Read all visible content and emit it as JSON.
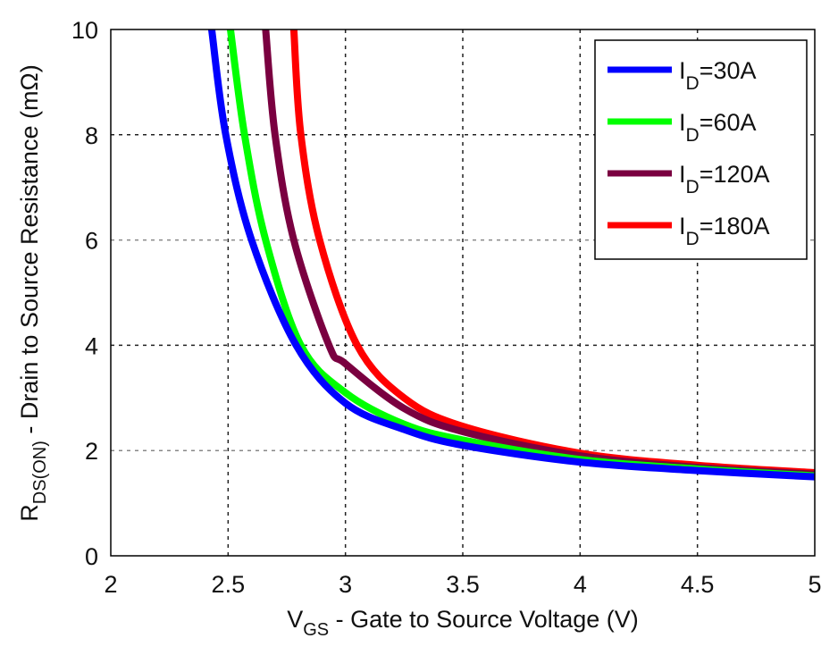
{
  "chart_data": {
    "type": "line",
    "title": "",
    "xlabel": {
      "main": "V",
      "sub": "GS",
      "rest": " - Gate to Source Voltage (V)"
    },
    "ylabel": {
      "main": "R",
      "sub": "DS(ON)",
      "rest": " - Drain to Source Resistance (mΩ)"
    },
    "xlim": [
      2,
      5
    ],
    "ylim": [
      0,
      10
    ],
    "xticks": [
      2,
      2.5,
      3,
      3.5,
      4,
      4.5,
      5
    ],
    "xtick_labels": [
      "2",
      "2.5",
      "3",
      "3.5",
      "4",
      "4.5",
      "5"
    ],
    "yticks": [
      0,
      2,
      4,
      6,
      8,
      10
    ],
    "ytick_labels": [
      "0",
      "2",
      "4",
      "6",
      "8",
      "10"
    ],
    "grid": true,
    "legend_position": "top-right",
    "series": [
      {
        "name": "I_D=30A",
        "label_main": "I",
        "label_sub": "D",
        "label_rest": "=30A",
        "color": "#0000ff",
        "x": [
          2.43,
          2.49,
          2.6,
          2.79,
          3.0,
          3.25,
          3.5,
          4.0,
          4.5,
          5.0
        ],
        "y": [
          10,
          8,
          6,
          4,
          2.9,
          2.4,
          2.1,
          1.78,
          1.62,
          1.5
        ]
      },
      {
        "name": "I_D=60A",
        "label_main": "I",
        "label_sub": "D",
        "label_rest": "=60A",
        "color": "#00ff00",
        "x": [
          2.51,
          2.57,
          2.66,
          2.81,
          3.0,
          3.25,
          3.5,
          4.0,
          4.5,
          5.0
        ],
        "y": [
          10,
          8,
          6,
          4,
          3.1,
          2.5,
          2.2,
          1.83,
          1.65,
          1.52
        ]
      },
      {
        "name": "I_D=120A",
        "label_main": "I",
        "label_sub": "D",
        "label_rest": "=120A",
        "color": "#7a0040",
        "x": [
          2.66,
          2.7,
          2.78,
          2.93,
          3.0,
          3.25,
          3.5,
          4.0,
          4.5,
          5.0
        ],
        "y": [
          10,
          8,
          6,
          4,
          3.65,
          2.8,
          2.36,
          1.9,
          1.68,
          1.55
        ]
      },
      {
        "name": "I_D=180A",
        "label_main": "I",
        "label_sub": "D",
        "label_rest": "=180A",
        "color": "#ff0000",
        "x": [
          2.78,
          2.81,
          2.89,
          3.05,
          3.25,
          3.5,
          4.0,
          4.5,
          5.0
        ],
        "y": [
          10,
          8,
          6,
          4,
          3.0,
          2.46,
          1.95,
          1.72,
          1.58
        ]
      }
    ]
  }
}
